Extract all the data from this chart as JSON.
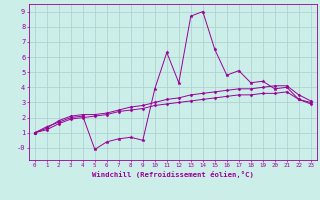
{
  "x": [
    0,
    1,
    2,
    3,
    4,
    5,
    6,
    7,
    8,
    9,
    10,
    11,
    12,
    13,
    14,
    15,
    16,
    17,
    18,
    19,
    20,
    21,
    22,
    23
  ],
  "line1": [
    1.0,
    1.4,
    1.7,
    2.0,
    2.1,
    -0.1,
    0.4,
    0.6,
    0.7,
    0.5,
    3.9,
    6.3,
    4.3,
    8.7,
    9.0,
    6.5,
    4.8,
    5.1,
    4.3,
    4.4,
    3.9,
    4.0,
    3.2,
    3.0
  ],
  "line2": [
    1.0,
    1.3,
    1.8,
    2.1,
    2.2,
    2.2,
    2.3,
    2.5,
    2.7,
    2.8,
    3.0,
    3.2,
    3.3,
    3.5,
    3.6,
    3.7,
    3.8,
    3.9,
    3.9,
    4.0,
    4.1,
    4.1,
    3.5,
    3.1
  ],
  "line3": [
    1.0,
    1.2,
    1.6,
    1.9,
    2.0,
    2.1,
    2.2,
    2.4,
    2.5,
    2.6,
    2.8,
    2.9,
    3.0,
    3.1,
    3.2,
    3.3,
    3.4,
    3.5,
    3.5,
    3.6,
    3.6,
    3.7,
    3.2,
    2.9
  ],
  "bg_color": "#cceee8",
  "grid_color": "#aacccc",
  "line_color": "#990099",
  "xlabel": "Windchill (Refroidissement éolien,°C)",
  "xlim": [
    -0.5,
    23.5
  ],
  "ylim": [
    -0.8,
    9.5
  ],
  "yticks": [
    0,
    1,
    2,
    3,
    4,
    5,
    6,
    7,
    8,
    9
  ],
  "ytick_labels": [
    "-0",
    "1",
    "2",
    "3",
    "4",
    "5",
    "6",
    "7",
    "8",
    "9"
  ],
  "xticks": [
    0,
    1,
    2,
    3,
    4,
    5,
    6,
    7,
    8,
    9,
    10,
    11,
    12,
    13,
    14,
    15,
    16,
    17,
    18,
    19,
    20,
    21,
    22,
    23
  ]
}
